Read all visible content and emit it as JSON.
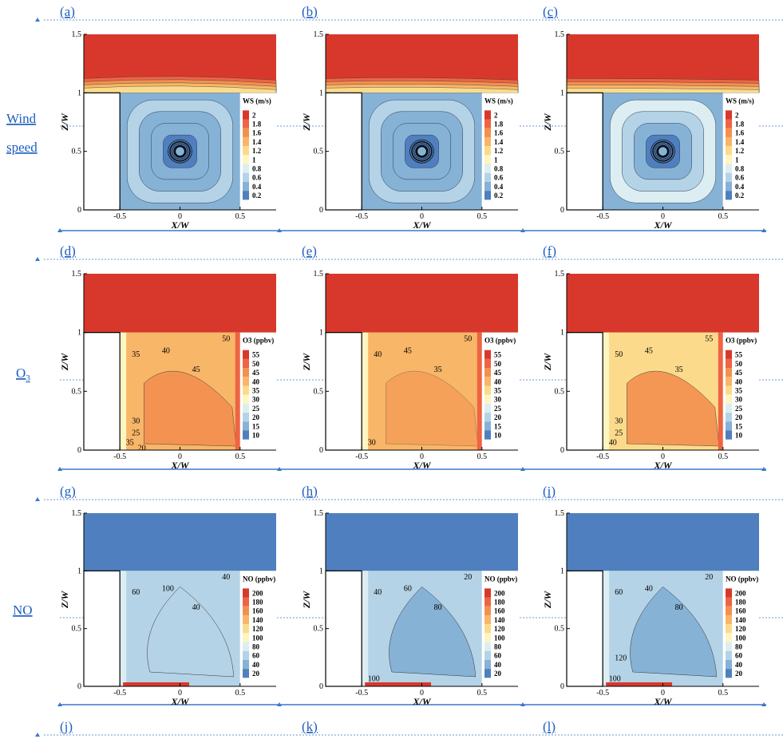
{
  "panel_labels": [
    "(a)",
    "(b)",
    "(c)",
    "(d)",
    "(e)",
    "(f)",
    "(g)",
    "(h)",
    "(i)",
    "(j)",
    "(k)",
    "(l)"
  ],
  "row_labels": [
    {
      "lines": [
        "Wind",
        "speed"
      ]
    },
    {
      "lines": [
        "O",
        "3"
      ]
    },
    {
      "lines": [
        "NO"
      ]
    }
  ],
  "colors": {
    "label_blue": "#1f5fbf",
    "guide_blue": "#3a78c9"
  },
  "chart_data": [
    {
      "type": "heatmap",
      "xlabel": "X/W",
      "ylabel": "Z/W",
      "xticks": [
        -0.5,
        0,
        0.5
      ],
      "yticks": [
        0,
        0.5,
        1,
        1.5
      ],
      "xlim": [
        -0.8,
        0.8
      ],
      "ylim": [
        0,
        1.5
      ],
      "legend_title": "WS (m/s)",
      "legend_levels": [
        2,
        1.8,
        1.6,
        1.4,
        1.2,
        1,
        0.8,
        0.6,
        0.4,
        0.2
      ],
      "legend_colors": [
        "#d7382b",
        "#ee6444",
        "#f4904f",
        "#f8b668",
        "#fbdb8b",
        "#fdf6c0",
        "#dceef2",
        "#b5d3e6",
        "#86b2d6",
        "#4f7fbe"
      ],
      "panels": [
        "(a)",
        "(b)",
        "(c)"
      ]
    },
    {
      "type": "heatmap",
      "xlabel": "X/W",
      "ylabel": "Z/W",
      "xticks": [
        -0.5,
        0,
        0.5
      ],
      "yticks": [
        0,
        0.5,
        1,
        1.5
      ],
      "xlim": [
        -0.8,
        0.8
      ],
      "ylim": [
        0,
        1.5
      ],
      "legend_title": "O3 (ppbv)",
      "legend_levels": [
        55,
        50,
        45,
        40,
        35,
        30,
        25,
        20,
        15,
        10
      ],
      "legend_colors": [
        "#d7382b",
        "#ee6444",
        "#f4904f",
        "#f8b668",
        "#fbdb8b",
        "#fdf6c0",
        "#dceef2",
        "#b5d3e6",
        "#86b2d6",
        "#4f7fbe"
      ],
      "contour_labels": [
        [
          "50",
          "35",
          "40",
          "45",
          "35",
          "30",
          "25",
          "20"
        ],
        [
          "50",
          "40",
          "45",
          "35",
          "30"
        ],
        [
          "55",
          "50",
          "45",
          "35",
          "40",
          "30",
          "25"
        ]
      ],
      "panels": [
        "(d)",
        "(e)",
        "(f)"
      ]
    },
    {
      "type": "heatmap",
      "xlabel": "X/W",
      "ylabel": "Z/W",
      "xticks": [
        -0.5,
        0,
        0.5
      ],
      "yticks": [
        0,
        0.5,
        1,
        1.5
      ],
      "xlim": [
        -0.8,
        0.8
      ],
      "ylim": [
        0,
        1.5
      ],
      "legend_title": "NO (ppbv)",
      "legend_levels": [
        200,
        180,
        160,
        140,
        120,
        100,
        80,
        60,
        40,
        20
      ],
      "legend_colors": [
        "#d7382b",
        "#ee6444",
        "#f4904f",
        "#f8b668",
        "#fbdb8b",
        "#fdf6c0",
        "#dceef2",
        "#b5d3e6",
        "#86b2d6",
        "#4f7fbe"
      ],
      "contour_labels": [
        [
          "40",
          "60",
          "100",
          "40"
        ],
        [
          "20",
          "40",
          "60",
          "80",
          "100"
        ],
        [
          "20",
          "60",
          "40",
          "80",
          "100",
          "120"
        ]
      ],
      "panels": [
        "(g)",
        "(h)",
        "(i)"
      ]
    }
  ]
}
